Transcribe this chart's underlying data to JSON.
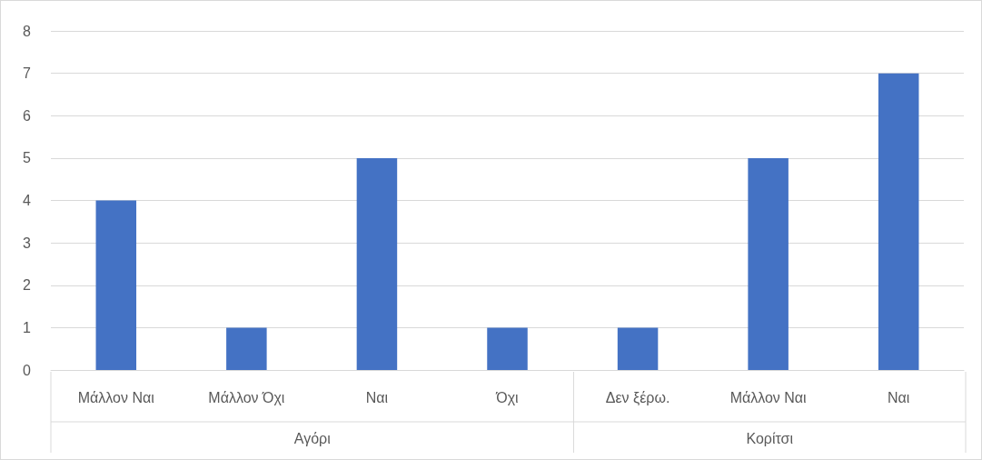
{
  "chart_data": {
    "type": "bar",
    "categories": [
      "Μάλλον Ναι",
      "Μάλλον Όχι",
      "Ναι",
      "Όχι",
      "Δεν ξέρω.",
      "Μάλλον Ναι",
      "Ναι"
    ],
    "values": [
      4,
      1,
      5,
      1,
      1,
      5,
      7
    ],
    "color": "#4472c4",
    "ylim": [
      0,
      8
    ],
    "yticks": [
      0,
      1,
      2,
      3,
      4,
      5,
      6,
      7,
      8
    ],
    "grid": "y",
    "annotations": [
      "Αγόρι",
      "Κορίτσι"
    ]
  }
}
